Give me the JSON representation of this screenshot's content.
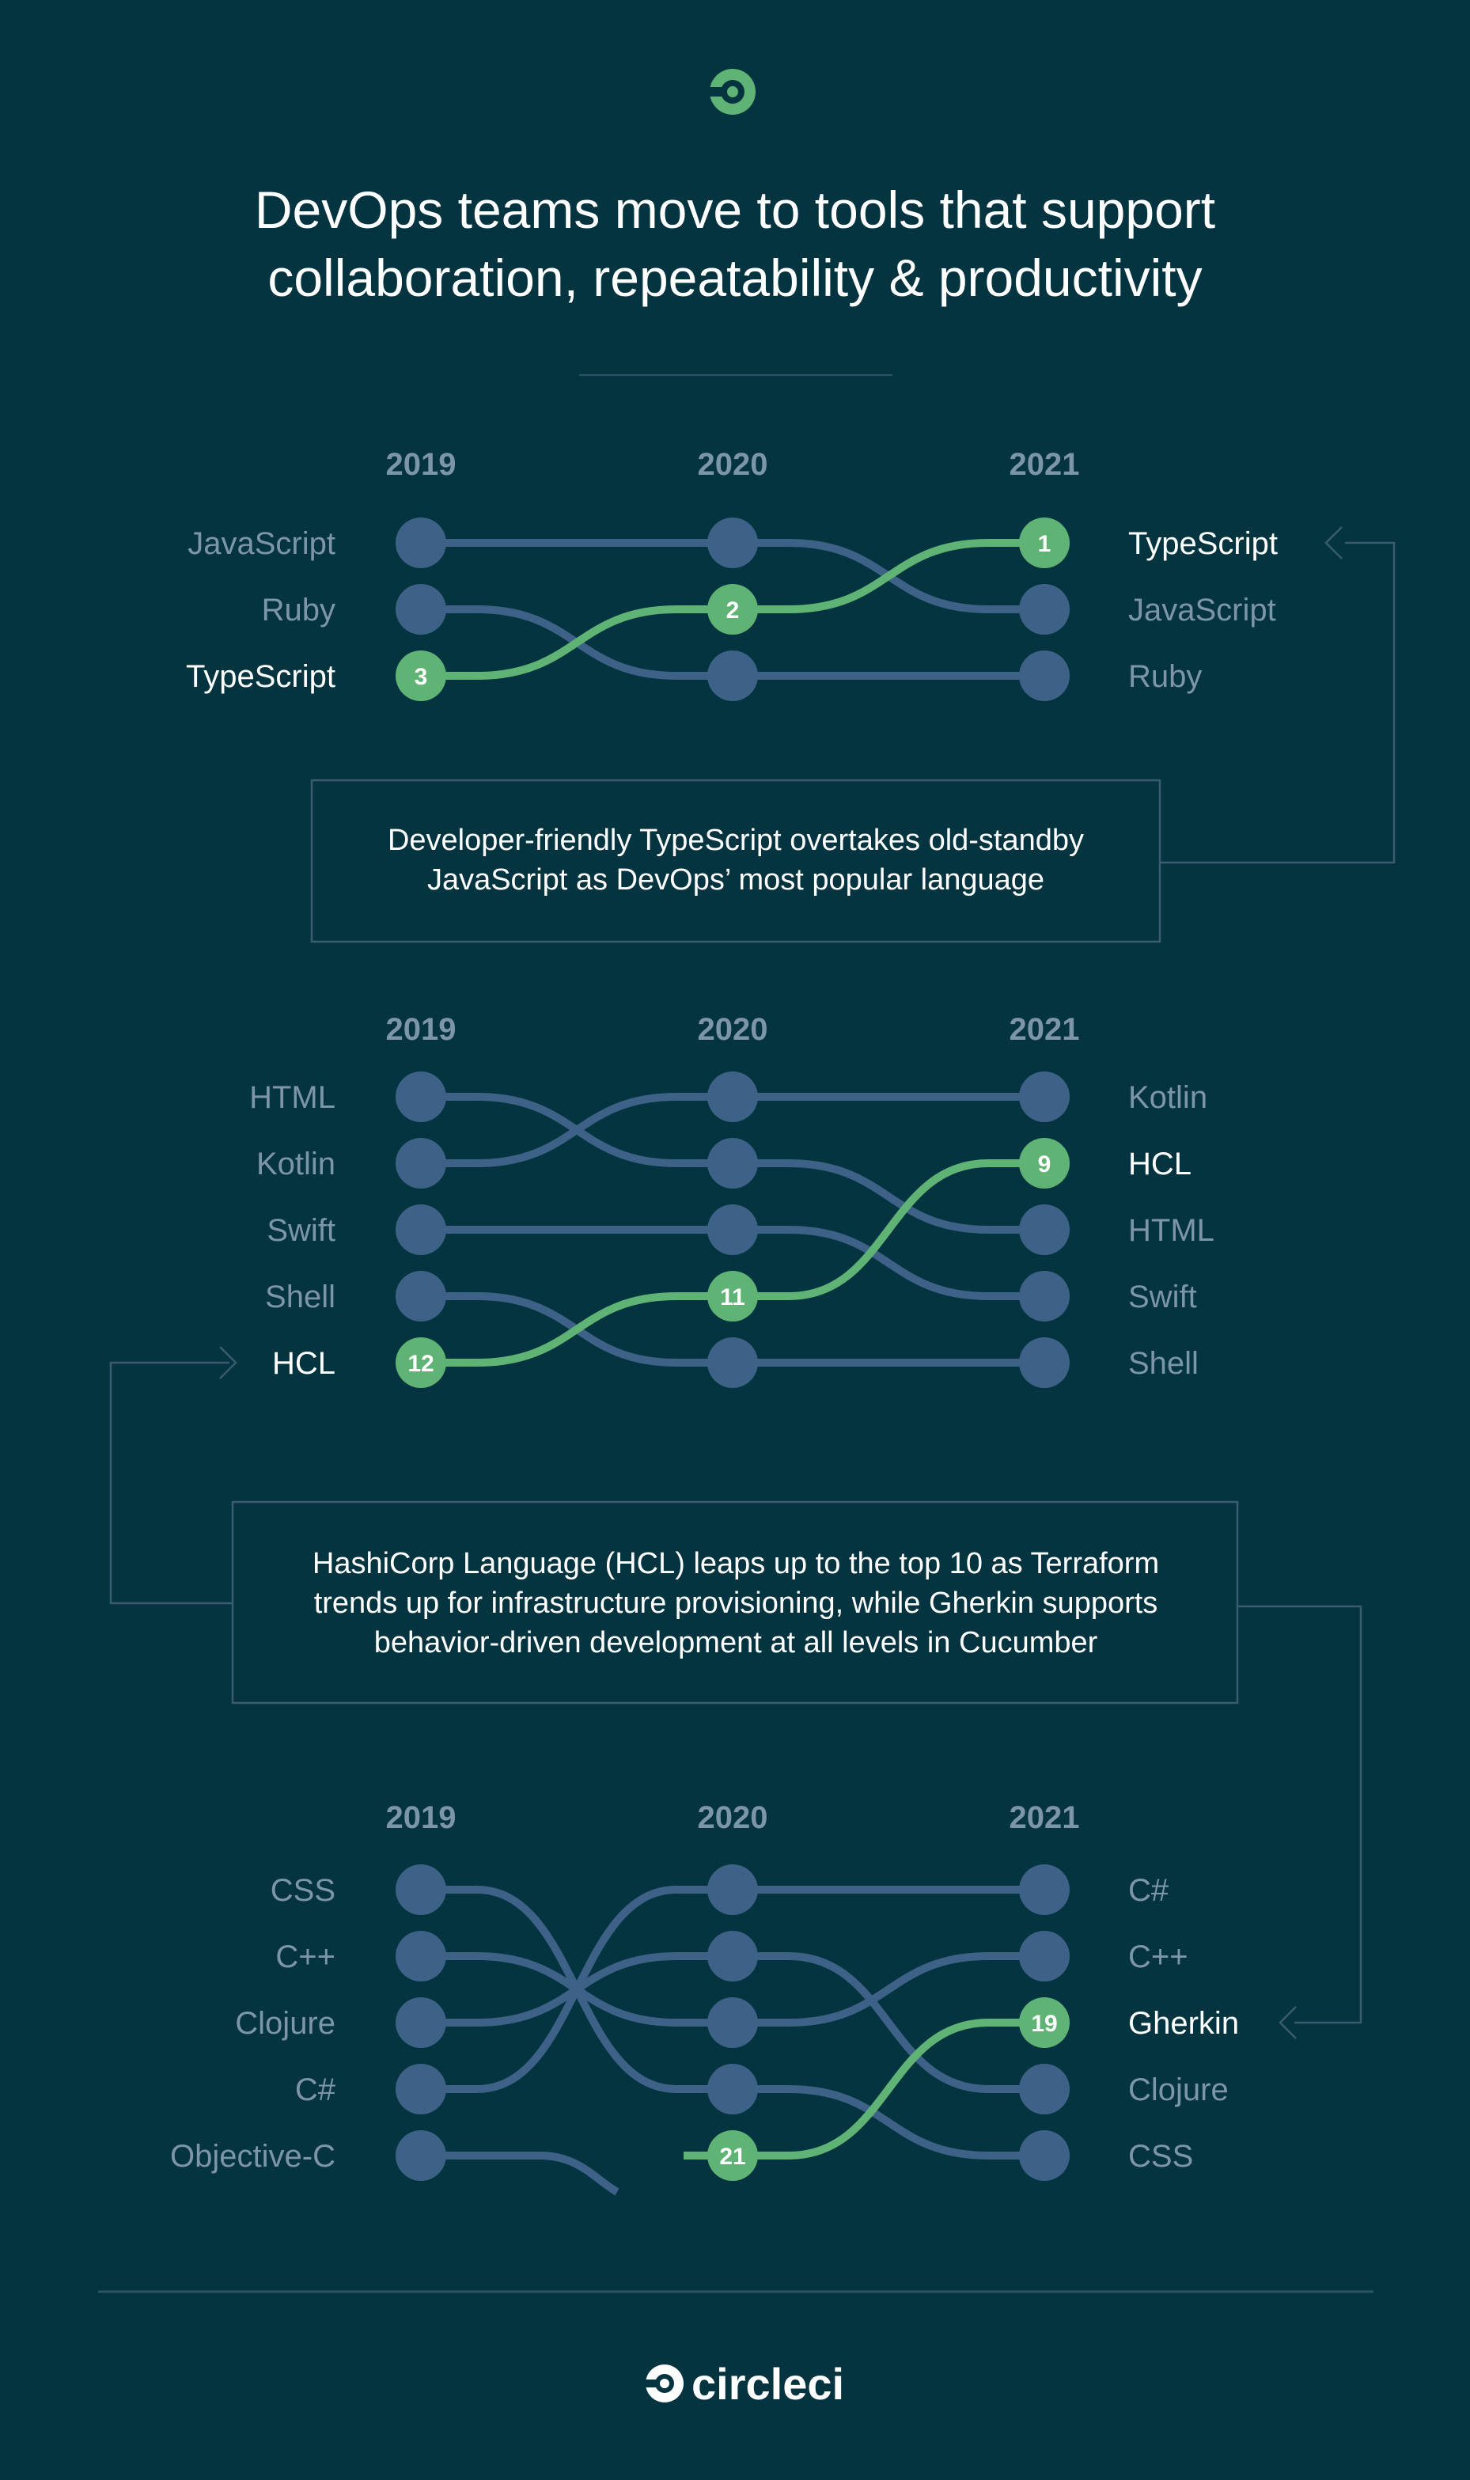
{
  "title": {
    "line1": "DevOps teams move to tools that support",
    "line2": "collaboration, repeatability & productivity"
  },
  "colors": {
    "background": "#04343f",
    "node": "#3e6287",
    "highlight": "#5fb475",
    "label": "#7c95a8",
    "box_border": "#3a5b70"
  },
  "logo": {
    "top_icon": "circleci-logo-icon",
    "footer_text": "circleci"
  },
  "chart_data": [
    {
      "type": "bump",
      "years": [
        "2019",
        "2020",
        "2021"
      ],
      "left_labels": [
        "JavaScript",
        "Ruby",
        "TypeScript"
      ],
      "right_labels": [
        "TypeScript",
        "JavaScript",
        "Ruby"
      ],
      "highlight": "TypeScript",
      "series": [
        {
          "name": "JavaScript",
          "positions": [
            0,
            0,
            1
          ]
        },
        {
          "name": "Ruby",
          "positions": [
            1,
            2,
            2
          ]
        },
        {
          "name": "TypeScript",
          "positions": [
            2,
            1,
            0
          ],
          "ranks": [
            "3",
            "2",
            "1"
          ],
          "highlight": true
        }
      ],
      "note": [
        "Developer-friendly TypeScript overtakes old-standby",
        "JavaScript as DevOps’ most popular language"
      ]
    },
    {
      "type": "bump",
      "years": [
        "2019",
        "2020",
        "2021"
      ],
      "left_labels": [
        "HTML",
        "Kotlin",
        "Swift",
        "Shell",
        "HCL"
      ],
      "right_labels": [
        "Kotlin",
        "HCL",
        "HTML",
        "Swift",
        "Shell"
      ],
      "highlight": "HCL",
      "series": [
        {
          "name": "HTML",
          "positions": [
            0,
            1,
            2
          ]
        },
        {
          "name": "Kotlin",
          "positions": [
            1,
            0,
            0
          ]
        },
        {
          "name": "Swift",
          "positions": [
            2,
            2,
            3
          ]
        },
        {
          "name": "Shell",
          "positions": [
            3,
            4,
            4
          ]
        },
        {
          "name": "HCL",
          "positions": [
            4,
            3,
            1
          ],
          "ranks": [
            "12",
            "11",
            "9"
          ],
          "highlight": true
        }
      ],
      "note": [
        "HashiCorp Language (HCL) leaps up to the top 10 as Terraform",
        "trends up for infrastructure provisioning, while Gherkin supports",
        "behavior-driven development at all  levels in Cucumber"
      ]
    },
    {
      "type": "bump",
      "years": [
        "2019",
        "2020",
        "2021"
      ],
      "left_labels": [
        "CSS",
        "C++",
        "Clojure",
        "C#",
        "Objective-C"
      ],
      "right_labels": [
        "C#",
        "C++",
        "Gherkin",
        "Clojure",
        "CSS"
      ],
      "highlight": "Gherkin",
      "series": [
        {
          "name": "CSS",
          "positions": [
            0,
            3,
            4
          ]
        },
        {
          "name": "C++",
          "positions": [
            1,
            2,
            1
          ]
        },
        {
          "name": "Clojure",
          "positions": [
            2,
            1,
            3
          ]
        },
        {
          "name": "C#",
          "positions": [
            3,
            0,
            0
          ]
        },
        {
          "name": "Objective-C",
          "positions": [
            4,
            null,
            null
          ],
          "drops_out": true
        },
        {
          "name": "Gherkin",
          "positions": [
            null,
            4,
            2
          ],
          "ranks": [
            "",
            "21",
            "19"
          ],
          "highlight": true,
          "enters": true
        }
      ]
    }
  ]
}
